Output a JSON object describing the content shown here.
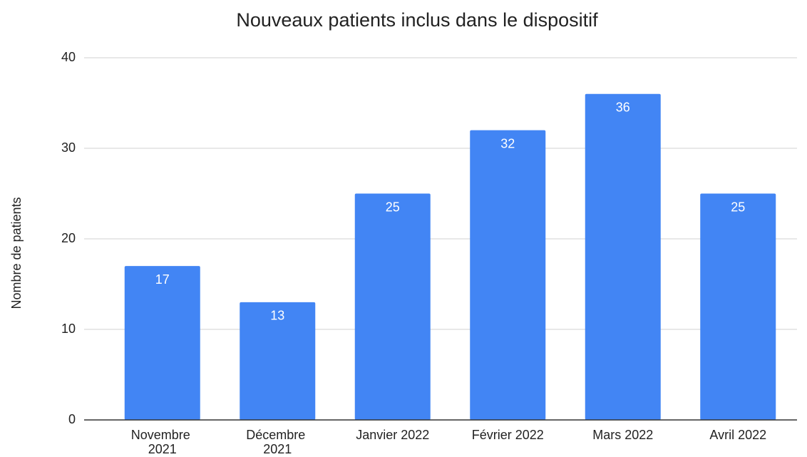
{
  "chart_data": {
    "type": "bar",
    "title": "Nouveaux patients inclus dans le dispositif",
    "y_label": "Nombre de patients",
    "categories": [
      "Novembre 2021",
      "Décembre 2021",
      "Janvier 2022",
      "Février 2022",
      "Mars 2022",
      "Avril 2022"
    ],
    "values": [
      17,
      13,
      25,
      32,
      36,
      25
    ],
    "color": "#4285f4",
    "ylim": [
      0,
      40
    ],
    "yticks": [
      0,
      10,
      20,
      30,
      40
    ],
    "grid": true,
    "data_labels": true
  }
}
